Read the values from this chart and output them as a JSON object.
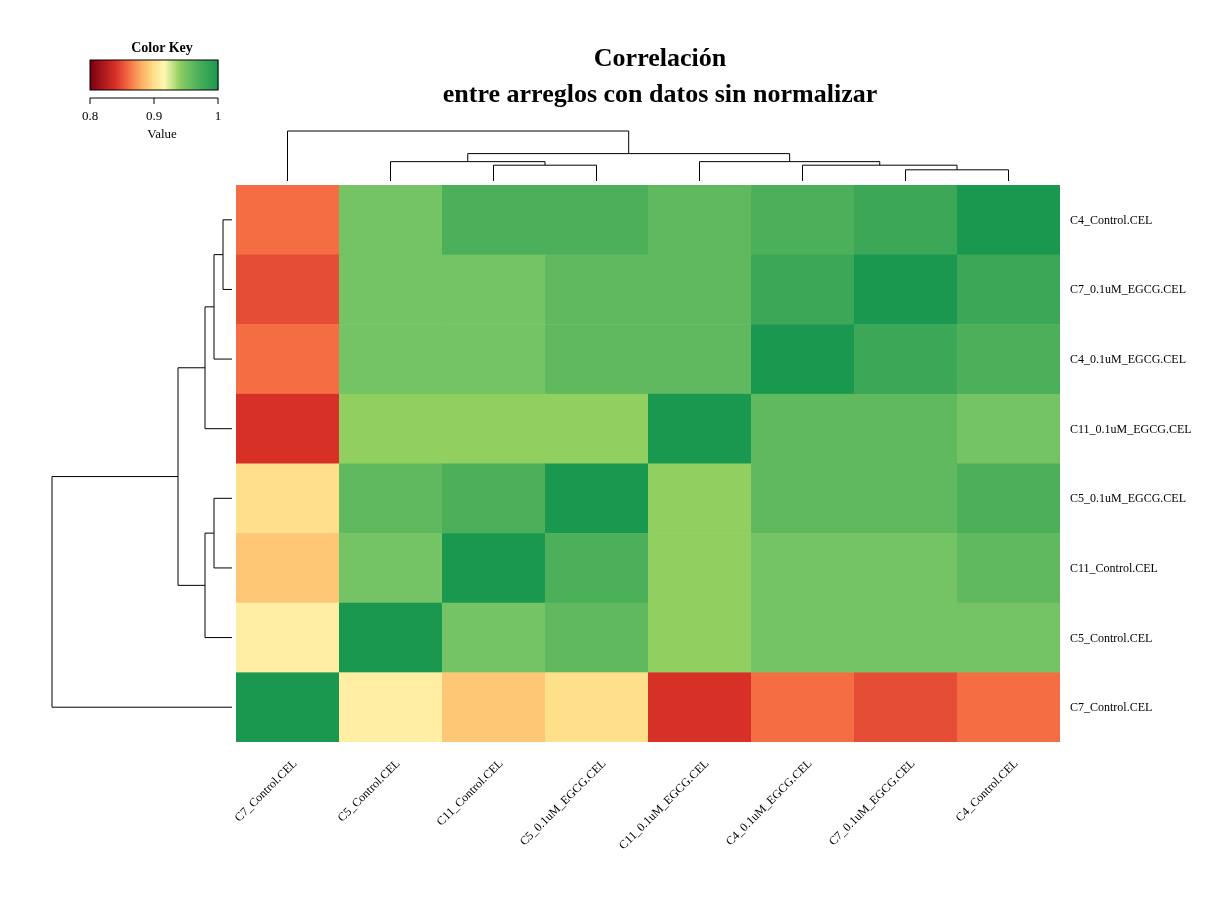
{
  "chart_data": {
    "type": "heatmap",
    "title": "Correlación\nentre arreglos con datos sin normalizar",
    "legend_title": "Color Key",
    "clabel": "Value",
    "categories": [
      "C7_Control.CEL",
      "C5_Control.CEL",
      "C11_Control.CEL",
      "C5_0.1uM_EGCG.CEL",
      "C11_0.1uM_EGCG.CEL",
      "C4_0.1uM_EGCG.CEL",
      "C7_0.1uM_EGCG.CEL",
      "C4_Control.CEL"
    ],
    "y_categories": [
      "C4_Control.CEL",
      "C7_0.1uM_EGCG.CEL",
      "C4_0.1uM_EGCG.CEL",
      "C11_0.1uM_EGCG.CEL",
      "C5_0.1uM_EGCG.CEL",
      "C11_Control.CEL",
      "C5_Control.CEL",
      "C7_Control.CEL"
    ],
    "cells": [
      [
        0.86,
        0.95,
        0.97,
        0.97,
        0.96,
        0.97,
        0.98,
        1
      ],
      [
        0.85,
        0.95,
        0.95,
        0.96,
        0.96,
        0.98,
        1,
        0.98
      ],
      [
        0.86,
        0.95,
        0.95,
        0.96,
        0.96,
        1,
        0.98,
        0.97
      ],
      [
        0.84,
        0.94,
        0.94,
        0.94,
        1,
        0.96,
        0.96,
        0.95
      ],
      [
        0.9,
        0.96,
        0.97,
        1,
        0.94,
        0.96,
        0.96,
        0.97
      ],
      [
        0.89,
        0.95,
        1,
        0.97,
        0.94,
        0.95,
        0.95,
        0.96
      ],
      [
        0.91,
        1,
        0.95,
        0.96,
        0.94,
        0.95,
        0.95,
        0.95
      ],
      [
        1,
        0.91,
        0.89,
        0.9,
        0.84,
        0.86,
        0.85,
        0.86
      ]
    ],
    "clim": [
      0.8,
      1
    ],
    "cticks": [
      0.8,
      0.9,
      1
    ]
  }
}
